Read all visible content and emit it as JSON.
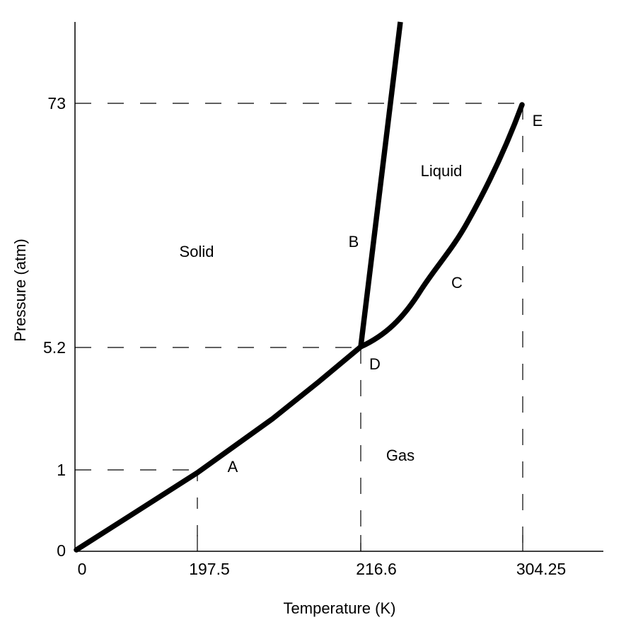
{
  "chart_data": {
    "type": "line",
    "title": "",
    "xlabel": "Temperature (K)",
    "ylabel": "Pressure (atm)",
    "x_ticks": [
      {
        "value": 0,
        "label": "0"
      },
      {
        "value": 197.5,
        "label": "197.5"
      },
      {
        "value": 216.6,
        "label": "216.6"
      },
      {
        "value": 304.25,
        "label": "304.25"
      }
    ],
    "y_ticks": [
      {
        "value": 0,
        "label": "0"
      },
      {
        "value": 1,
        "label": "1"
      },
      {
        "value": 5.2,
        "label": "5.2"
      },
      {
        "value": 73,
        "label": "73"
      }
    ],
    "axis_scale": "non-linear (schematic)",
    "grid": false,
    "reference_lines": [
      {
        "name": "p-1",
        "from": [
          0,
          1
        ],
        "to": [
          197.5,
          1
        ]
      },
      {
        "name": "t-197.5",
        "from": [
          197.5,
          0
        ],
        "to": [
          197.5,
          1
        ]
      },
      {
        "name": "p-5.2",
        "from": [
          0,
          5.2
        ],
        "to": [
          216.6,
          5.2
        ]
      },
      {
        "name": "t-216.6",
        "from": [
          216.6,
          0
        ],
        "to": [
          216.6,
          5.2
        ]
      },
      {
        "name": "p-73",
        "from": [
          0,
          73
        ],
        "to": [
          304.25,
          73
        ]
      },
      {
        "name": "t-304.25",
        "from": [
          304.25,
          0
        ],
        "to": [
          304.25,
          73
        ]
      }
    ],
    "series": [
      {
        "name": "sublimation-curve",
        "points": [
          [
            0,
            0
          ],
          [
            197.5,
            1
          ],
          [
            216.6,
            5.2
          ]
        ]
      },
      {
        "name": "melting-curve",
        "points": [
          [
            216.6,
            5.2
          ],
          [
            222,
            "above-axis"
          ]
        ]
      },
      {
        "name": "vaporization-curve",
        "points": [
          [
            216.6,
            5.2
          ],
          [
            304.25,
            73
          ]
        ]
      }
    ],
    "regions": [
      {
        "label": "Solid"
      },
      {
        "label": "Liquid"
      },
      {
        "label": "Gas"
      }
    ],
    "points": [
      {
        "label": "A"
      },
      {
        "label": "B"
      },
      {
        "label": "C"
      },
      {
        "label": "D"
      },
      {
        "label": "E"
      }
    ],
    "colors": {
      "line": "#000000",
      "background": "#ffffff"
    }
  }
}
